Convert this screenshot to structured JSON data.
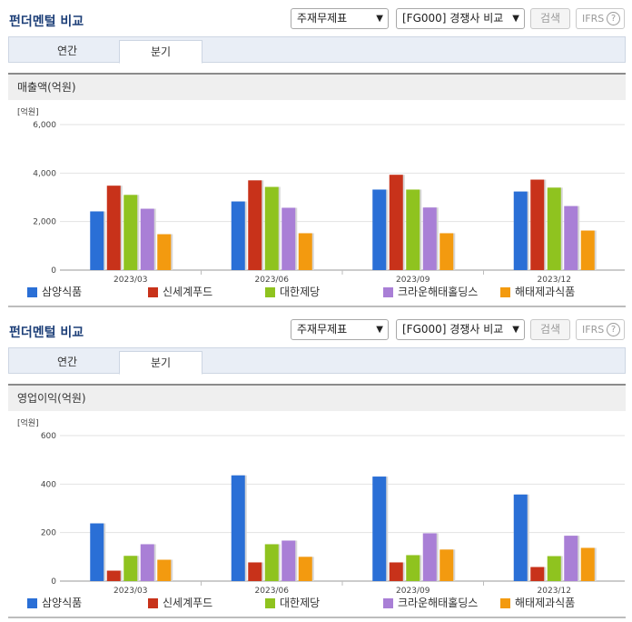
{
  "colors": {
    "samyang": "#2a6fd6",
    "shinsegae": "#c8321a",
    "daehan": "#8fc31f",
    "crown": "#a97fd6",
    "haitai": "#f39a0f"
  },
  "panels": [
    {
      "title": "펀더멘털 비교",
      "select_statement": "주재무제표",
      "select_group": "[FG000] 경쟁사 비교",
      "search_label": "검색",
      "ifrs_label": "IFRS",
      "help_label": "?",
      "tabs": [
        "연간",
        "분기"
      ],
      "active_tab": "분기",
      "section_title": "매출액(억원)"
    },
    {
      "title": "펀더멘털 비교",
      "select_statement": "주재무제표",
      "select_group": "[FG000] 경쟁사 비교",
      "search_label": "검색",
      "ifrs_label": "IFRS",
      "help_label": "?",
      "tabs": [
        "연간",
        "분기"
      ],
      "active_tab": "분기",
      "section_title": "영업이익(억원)"
    }
  ],
  "chart_data": [
    {
      "type": "bar",
      "unit_label": "[억원]",
      "categories": [
        "2023/03",
        "2023/06",
        "2023/09",
        "2023/12"
      ],
      "yticks": [
        "6,000",
        "4,000",
        "2,000",
        "0"
      ],
      "ylim": [
        0,
        6000
      ],
      "grid": true,
      "legend_position": "bottom",
      "series": [
        {
          "name": "삼양식품",
          "color": "#2a6fd6",
          "values": [
            2420,
            2830,
            3320,
            3240
          ]
        },
        {
          "name": "신세계푸드",
          "color": "#c8321a",
          "values": [
            3480,
            3700,
            3930,
            3730
          ]
        },
        {
          "name": "대한제당",
          "color": "#8fc31f",
          "values": [
            3100,
            3430,
            3320,
            3400
          ]
        },
        {
          "name": "크라운해태홀딩스",
          "color": "#a97fd6",
          "values": [
            2530,
            2570,
            2580,
            2640
          ]
        },
        {
          "name": "해태제과식품",
          "color": "#f39a0f",
          "values": [
            1480,
            1520,
            1520,
            1630
          ]
        }
      ]
    },
    {
      "type": "bar",
      "unit_label": "[억원]",
      "categories": [
        "2023/03",
        "2023/06",
        "2023/09",
        "2023/12"
      ],
      "yticks": [
        "600",
        "400",
        "200",
        "0"
      ],
      "ylim": [
        0,
        600
      ],
      "grid": true,
      "legend_position": "bottom",
      "series": [
        {
          "name": "삼양식품",
          "color": "#2a6fd6",
          "values": [
            238,
            436,
            431,
            357
          ]
        },
        {
          "name": "신세계푸드",
          "color": "#c8321a",
          "values": [
            43,
            77,
            77,
            58
          ]
        },
        {
          "name": "대한제당",
          "color": "#8fc31f",
          "values": [
            104,
            152,
            107,
            103
          ]
        },
        {
          "name": "크라운해태홀딩스",
          "color": "#a97fd6",
          "values": [
            152,
            167,
            197,
            187
          ]
        },
        {
          "name": "해태제과식품",
          "color": "#f39a0f",
          "values": [
            88,
            100,
            130,
            137
          ]
        }
      ]
    }
  ]
}
